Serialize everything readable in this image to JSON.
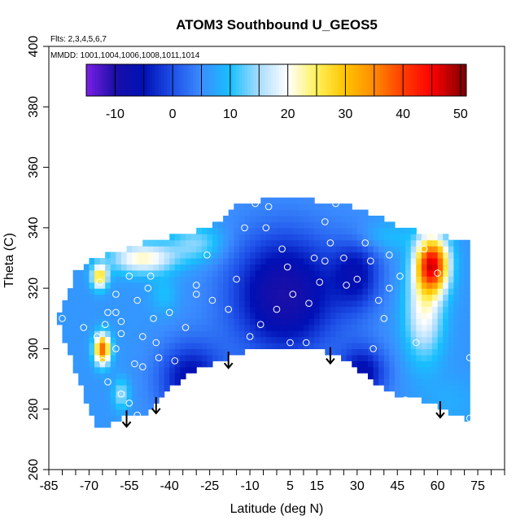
{
  "chart_data": {
    "type": "heatmap",
    "title": "ATOM3 Southbound U_GEOS5",
    "annotations": [
      "Flts: 2,3,4,5,6,7",
      "MMDD: 1001,1004,1006,1008,1011,1014"
    ],
    "xlabel": "Latitude (deg N)",
    "ylabel": "Theta (C)",
    "xlim": [
      -85,
      85
    ],
    "ylim": [
      260,
      400
    ],
    "x_ticks_major": [
      -85,
      -70,
      -55,
      -40,
      -25,
      -10,
      5,
      15,
      30,
      45,
      60,
      75
    ],
    "x_ticks_minor_step": 5,
    "y_ticks": [
      260,
      280,
      300,
      320,
      340,
      360,
      380,
      400
    ],
    "colorbar": {
      "min": -15,
      "max": 51,
      "ticks": [
        -10,
        0,
        10,
        20,
        30,
        40,
        50
      ],
      "stops": [
        {
          "value": -15,
          "color": "#7b1fe6"
        },
        {
          "value": -10,
          "color": "#1a0fa8"
        },
        {
          "value": -5,
          "color": "#0010b5"
        },
        {
          "value": 0,
          "color": "#1e50e8"
        },
        {
          "value": 5,
          "color": "#3b8cff"
        },
        {
          "value": 10,
          "color": "#18c0ff"
        },
        {
          "value": 15,
          "color": "#a9dcff"
        },
        {
          "value": 20,
          "color": "#ffffff"
        },
        {
          "value": 25,
          "color": "#fff15a"
        },
        {
          "value": 30,
          "color": "#ffc400"
        },
        {
          "value": 35,
          "color": "#ff8a00"
        },
        {
          "value": 40,
          "color": "#ff3c00"
        },
        {
          "value": 45,
          "color": "#ff0000"
        },
        {
          "value": 51,
          "color": "#7a0000"
        }
      ]
    },
    "contour_field": {
      "domain_top": [
        [
          -82,
          310
        ],
        [
          -75,
          325
        ],
        [
          -68,
          330
        ],
        [
          -60,
          332
        ],
        [
          -50,
          335
        ],
        [
          -35,
          338
        ],
        [
          -25,
          340
        ],
        [
          -15,
          347
        ],
        [
          -5,
          349
        ],
        [
          5,
          350
        ],
        [
          15,
          349
        ],
        [
          25,
          348
        ],
        [
          35,
          345
        ],
        [
          45,
          341
        ],
        [
          55,
          338
        ],
        [
          65,
          337
        ],
        [
          72,
          336
        ]
      ],
      "domain_bottom": [
        [
          72,
          276
        ],
        [
          65,
          279
        ],
        [
          55,
          283
        ],
        [
          45,
          285
        ],
        [
          35,
          290
        ],
        [
          25,
          297
        ],
        [
          15,
          300
        ],
        [
          5,
          300
        ],
        [
          -8,
          300
        ],
        [
          -18,
          297
        ],
        [
          -30,
          293
        ],
        [
          -40,
          287
        ],
        [
          -48,
          279
        ],
        [
          -55,
          278
        ],
        [
          -62,
          275
        ],
        [
          -66,
          273
        ],
        [
          -72,
          285
        ],
        [
          -78,
          300
        ],
        [
          -82,
          310
        ]
      ],
      "base_value": 6,
      "features": [
        {
          "x": 3,
          "y": 318,
          "sx": 20,
          "sy": 20,
          "v": -10
        },
        {
          "x": -32,
          "y": 290,
          "sx": 12,
          "sy": 12,
          "v": -6
        },
        {
          "x": 32,
          "y": 292,
          "sx": 9,
          "sy": 9,
          "v": -6
        },
        {
          "x": 30,
          "y": 325,
          "sx": 9,
          "sy": 12,
          "v": -4
        },
        {
          "x": 58,
          "y": 328,
          "sx": 6,
          "sy": 9,
          "v": 44
        },
        {
          "x": 55,
          "y": 312,
          "sx": 7,
          "sy": 15,
          "v": 20
        },
        {
          "x": 40,
          "y": 337,
          "sx": 12,
          "sy": 5,
          "v": 10
        },
        {
          "x": 65,
          "y": 283,
          "sx": 10,
          "sy": 8,
          "v": 8
        },
        {
          "x": -65,
          "y": 300,
          "sx": 3,
          "sy": 5,
          "v": 38
        },
        {
          "x": -66,
          "y": 324,
          "sx": 3,
          "sy": 4,
          "v": 28
        },
        {
          "x": -50,
          "y": 330,
          "sx": 12,
          "sy": 5,
          "v": 22
        },
        {
          "x": -30,
          "y": 335,
          "sx": 10,
          "sy": 6,
          "v": 14
        },
        {
          "x": -58,
          "y": 285,
          "sx": 3,
          "sy": 5,
          "v": 15
        },
        {
          "x": -42,
          "y": 318,
          "sx": 5,
          "sy": 6,
          "v": 10
        }
      ]
    },
    "observations": [
      [
        -80,
        310
      ],
      [
        -72,
        307
      ],
      [
        -67,
        304
      ],
      [
        -63,
        312
      ],
      [
        -60,
        318
      ],
      [
        -66,
        322
      ],
      [
        -55,
        324
      ],
      [
        -52,
        316
      ],
      [
        -48,
        320
      ],
      [
        -46,
        310
      ],
      [
        -50,
        304
      ],
      [
        -58,
        305
      ],
      [
        -60,
        300
      ],
      [
        -65,
        296
      ],
      [
        -63,
        289
      ],
      [
        -58,
        285
      ],
      [
        -55,
        282
      ],
      [
        -52,
        278
      ],
      [
        -45,
        302
      ],
      [
        -44,
        297
      ],
      [
        -38,
        296
      ],
      [
        -40,
        312
      ],
      [
        -34,
        307
      ],
      [
        -30,
        318
      ],
      [
        -24,
        316
      ],
      [
        -26,
        331
      ],
      [
        -18,
        313
      ],
      [
        -15,
        323
      ],
      [
        -12,
        340
      ],
      [
        -8,
        348
      ],
      [
        -4,
        340
      ],
      [
        -3,
        347
      ],
      [
        -6,
        308
      ],
      [
        0,
        313
      ],
      [
        4,
        327
      ],
      [
        6,
        318
      ],
      [
        5,
        302
      ],
      [
        11,
        302
      ],
      [
        12,
        315
      ],
      [
        14,
        330
      ],
      [
        16,
        322
      ],
      [
        18,
        329
      ],
      [
        20,
        335
      ],
      [
        18,
        342
      ],
      [
        22,
        348
      ],
      [
        25,
        330
      ],
      [
        30,
        323
      ],
      [
        33,
        335
      ],
      [
        35,
        329
      ],
      [
        38,
        316
      ],
      [
        40,
        310
      ],
      [
        42,
        320
      ],
      [
        42,
        331
      ],
      [
        46,
        324
      ],
      [
        48,
        283
      ],
      [
        52,
        302
      ],
      [
        55,
        333
      ],
      [
        60,
        325
      ],
      [
        72,
        297
      ],
      [
        72,
        277
      ],
      [
        -50,
        294
      ],
      [
        -64,
        308
      ],
      [
        -60,
        312
      ],
      [
        -58,
        309
      ],
      [
        -53,
        295
      ],
      [
        -47,
        324
      ],
      [
        -30,
        321
      ],
      [
        2,
        333
      ],
      [
        26,
        321
      ],
      [
        36,
        300
      ],
      [
        -10,
        304
      ]
    ],
    "arrows_at_latitude": [
      -56,
      -45,
      -18,
      20,
      61
    ]
  }
}
